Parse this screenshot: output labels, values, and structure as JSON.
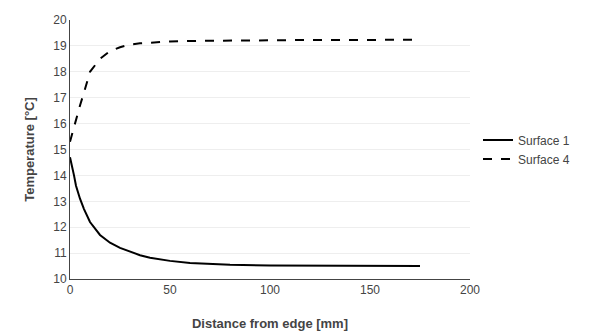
{
  "chart_data": {
    "type": "line",
    "xlabel": "Distance from edge [mm]",
    "ylabel": "Temperature [°C]",
    "x": [
      0,
      1,
      2,
      3,
      5,
      7,
      10,
      15,
      20,
      25,
      30,
      35,
      40,
      50,
      60,
      70,
      80,
      100,
      120,
      150,
      175
    ],
    "series": [
      {
        "name": "Surface 1",
        "color": "#000000",
        "line_style": "solid",
        "values": [
          14.7,
          14.4,
          14.0,
          13.6,
          13.1,
          12.7,
          12.2,
          11.7,
          11.4,
          11.2,
          11.05,
          10.92,
          10.82,
          10.7,
          10.62,
          10.58,
          10.55,
          10.52,
          10.51,
          10.5,
          10.5
        ]
      },
      {
        "name": "Surface 4",
        "color": "#000000",
        "line_style": "dashed",
        "values": [
          15.3,
          15.6,
          15.9,
          16.2,
          16.7,
          17.2,
          18.0,
          18.5,
          18.8,
          18.95,
          19.05,
          19.1,
          19.13,
          19.17,
          19.19,
          19.2,
          19.21,
          19.22,
          19.23,
          19.23,
          19.24
        ]
      }
    ],
    "xlim": [
      0,
      200
    ],
    "ylim": [
      10,
      20
    ],
    "xticks": [
      0,
      50,
      100,
      150,
      200
    ],
    "yticks": [
      10,
      11,
      12,
      13,
      14,
      15,
      16,
      17,
      18,
      19,
      20
    ],
    "grid": "y",
    "legend": "right"
  }
}
